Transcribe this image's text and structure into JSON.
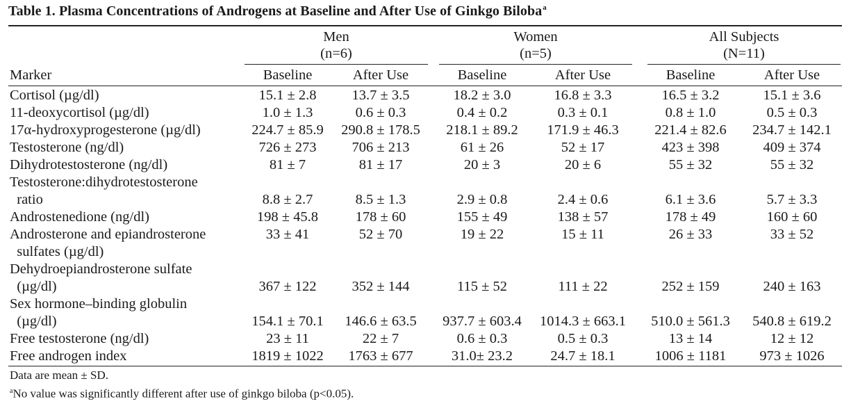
{
  "title": "Table 1.  Plasma Concentrations of Androgens at Baseline and After Use of Ginkgo Biloba",
  "title_footnote_mark": "a",
  "groups": [
    {
      "name": "Men",
      "n": "(n=6)"
    },
    {
      "name": "Women",
      "n": "(n=5)"
    },
    {
      "name": "All Subjects",
      "n": "(N=11)"
    }
  ],
  "marker_header": "Marker",
  "sub_headers": [
    "Baseline",
    "After Use",
    "Baseline",
    "After Use",
    "Baseline",
    "After Use"
  ],
  "rows": [
    {
      "label": [
        "Cortisol (µg/dl)"
      ],
      "values": [
        "15.1 ± 2.8",
        "13.7 ± 3.5",
        "18.2 ± 3.0",
        "16.8 ± 3.3",
        "16.5 ± 3.2",
        "15.1 ± 3.6"
      ]
    },
    {
      "label": [
        "11-deoxycortisol (µg/dl)"
      ],
      "values": [
        "1.0 ± 1.3",
        "0.6 ± 0.3",
        "0.4 ± 0.2",
        "0.3 ± 0.1",
        "0.8 ± 1.0",
        "0.5 ± 0.3"
      ]
    },
    {
      "label": [
        "17α-hydroxyprogesterone (µg/dl)"
      ],
      "values": [
        "224.7 ± 85.9",
        "290.8 ± 178.5",
        "218.1 ± 89.2",
        "171.9 ± 46.3",
        "221.4 ± 82.6",
        "234.7 ± 142.1"
      ]
    },
    {
      "label": [
        "Testosterone (ng/dl)"
      ],
      "values": [
        "726 ± 273",
        "706 ± 213",
        "61 ± 26",
        "52 ± 17",
        "423 ± 398",
        "409 ± 374"
      ]
    },
    {
      "label": [
        "Dihydrotestosterone (ng/dl)"
      ],
      "values": [
        "81 ± 7",
        "81 ± 17",
        "20 ±  3",
        "20 ± 6",
        "55 ± 32",
        "55 ± 32"
      ]
    },
    {
      "label": [
        "Testosterone:dihydrotestosterone",
        "  ratio"
      ],
      "values": [
        "8.8 ± 2.7",
        "8.5 ± 1.3",
        "2.9 ± 0.8",
        "2.4 ± 0.6",
        "6.1 ± 3.6",
        "5.7 ± 3.3"
      ]
    },
    {
      "label": [
        "Androstenedione (ng/dl)"
      ],
      "values": [
        "198 ± 45.8",
        "178 ± 60",
        "155 ± 49",
        "138 ± 57",
        "178 ± 49",
        "160 ± 60"
      ]
    },
    {
      "label": [
        "Androsterone and epiandrosterone",
        "  sulfates (µg/dl)"
      ],
      "values": [
        "33 ± 41",
        "52 ± 70",
        "19 ± 22",
        "15 ± 11",
        "26 ± 33",
        "33 ± 52"
      ]
    },
    {
      "label": [
        "Dehydroepiandrosterone sulfate",
        "  (µg/dl)"
      ],
      "values": [
        "367 ± 122",
        "352 ± 144",
        "115 ± 52",
        "111 ± 22",
        "252 ± 159",
        "240 ± 163"
      ]
    },
    {
      "label": [
        "Sex hormone–binding globulin",
        "  (µg/dl)"
      ],
      "values": [
        "154.1 ± 70.1",
        "146.6 ± 63.5",
        "937.7 ± 603.4",
        "1014.3 ± 663.1",
        "510.0 ± 561.3",
        "540.8 ± 619.2"
      ]
    },
    {
      "label": [
        "Free testosterone (ng/dl)"
      ],
      "values": [
        "23 ± 11",
        "22 ± 7",
        "0.6 ± 0.3",
        "0.5 ± 0.3",
        "13 ± 14",
        "12 ± 12"
      ]
    },
    {
      "label": [
        "Free androgen index"
      ],
      "values": [
        "1819 ± 1022",
        "1763 ± 677",
        "31.0± 23.2",
        "24.7 ± 18.1",
        "1006 ± 1181",
        "973 ± 1026"
      ]
    }
  ],
  "footnotes": {
    "data_note": "Data are mean ± SD.",
    "a_mark": "a",
    "a_text": "No value was significantly different after use of ginkgo biloba (p<0.05)."
  }
}
